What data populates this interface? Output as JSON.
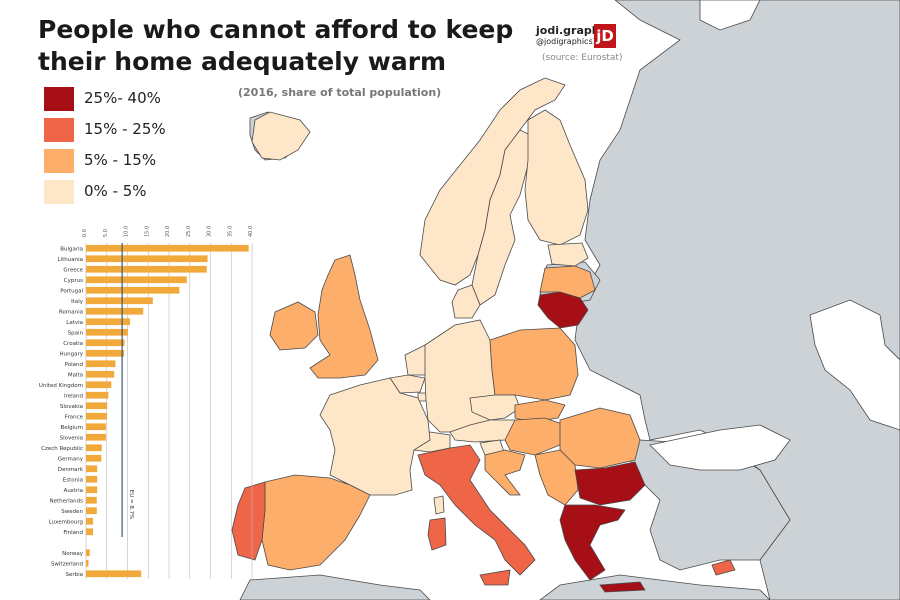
{
  "title": "People who cannot afford to keep their home adequately warm",
  "subtitle": "(2016, share of total population)",
  "brand": {
    "name": "jodi.graphics",
    "handle": "@jodigraphics15",
    "logo_text": "jD"
  },
  "source": "(source: Eurostat)",
  "colors": {
    "sea": "#ffffff",
    "non_eu": "#cdd2d6",
    "border": "#4a4a4a",
    "bar": "#f2a93b",
    "axis_text": "#555555",
    "grid": "#bbbbbb",
    "eu_line": "#3a5a7a"
  },
  "legend": [
    {
      "label": "25%- 40%",
      "color": "#a50f15"
    },
    {
      "label": "15% - 25%",
      "color": "#ef6548"
    },
    {
      "label": "5% - 15%",
      "color": "#fdae6b"
    },
    {
      "label": "0% - 5%",
      "color": "#fee6c9"
    }
  ],
  "chart_data": {
    "type": "bar",
    "orientation": "horizontal",
    "title": "",
    "xlabel": "",
    "ylabel": "",
    "xlim": [
      0,
      40
    ],
    "x_ticks": [
      0,
      5,
      10,
      15,
      20,
      25,
      30,
      35,
      40
    ],
    "x_tick_labels": [
      "0.0",
      "5.0",
      "10.0",
      "15.0",
      "20.0",
      "25.0",
      "30.0",
      "35.0",
      "40.0"
    ],
    "categories": [
      "Bulgaria",
      "Lithuania",
      "Greece",
      "Cyprus",
      "Portugal",
      "Italy",
      "Romania",
      "Latvia",
      "Spain",
      "Croatia",
      "Hungary",
      "Poland",
      "Malta",
      "United Kingdom",
      "Ireland",
      "Slovakia",
      "France",
      "Belgium",
      "Slovenia",
      "Czech Republic",
      "Germany",
      "Denmark",
      "Estonia",
      "Austria",
      "Netherlands",
      "Sweden",
      "Luxembourg",
      "Finland",
      "",
      "Norway",
      "Switzerland",
      "Serbia"
    ],
    "values": [
      39.2,
      29.3,
      29.1,
      24.3,
      22.5,
      16.1,
      13.8,
      10.6,
      10.1,
      9.3,
      9.2,
      7.1,
      6.8,
      6.1,
      5.4,
      5.1,
      5.0,
      4.8,
      4.8,
      3.8,
      3.7,
      2.7,
      2.7,
      2.7,
      2.6,
      2.6,
      1.7,
      1.7,
      null,
      0.9,
      0.6,
      13.3
    ],
    "reference_line": {
      "label": "EU = 8.7%",
      "value": 8.7
    },
    "grid": true
  },
  "map": {
    "regions": [
      {
        "name": "Iceland",
        "class": "0-5"
      },
      {
        "name": "Norway",
        "class": "0-5"
      },
      {
        "name": "Sweden",
        "class": "0-5"
      },
      {
        "name": "Finland",
        "class": "0-5"
      },
      {
        "name": "Estonia",
        "class": "0-5"
      },
      {
        "name": "Latvia",
        "class": "5-15"
      },
      {
        "name": "Lithuania",
        "class": "25-40"
      },
      {
        "name": "United Kingdom",
        "class": "5-15"
      },
      {
        "name": "Ireland",
        "class": "5-15"
      },
      {
        "name": "Denmark",
        "class": "0-5"
      },
      {
        "name": "Netherlands",
        "class": "0-5"
      },
      {
        "name": "Belgium",
        "class": "0-5"
      },
      {
        "name": "Luxembourg",
        "class": "0-5"
      },
      {
        "name": "Germany",
        "class": "0-5"
      },
      {
        "name": "Poland",
        "class": "5-15"
      },
      {
        "name": "Czech Republic",
        "class": "0-5"
      },
      {
        "name": "Slovakia",
        "class": "5-15"
      },
      {
        "name": "Austria",
        "class": "0-5"
      },
      {
        "name": "Switzerland",
        "class": "0-5"
      },
      {
        "name": "France",
        "class": "0-5"
      },
      {
        "name": "Spain",
        "class": "5-15"
      },
      {
        "name": "Portugal",
        "class": "15-25"
      },
      {
        "name": "Italy",
        "class": "15-25"
      },
      {
        "name": "Sardinia",
        "class": "15-25"
      },
      {
        "name": "Sicily",
        "class": "15-25"
      },
      {
        "name": "Corsica",
        "class": "0-5"
      },
      {
        "name": "Slovenia",
        "class": "0-5"
      },
      {
        "name": "Croatia",
        "class": "5-15"
      },
      {
        "name": "Hungary",
        "class": "5-15"
      },
      {
        "name": "Romania",
        "class": "5-15"
      },
      {
        "name": "Serbia",
        "class": "5-15"
      },
      {
        "name": "Bulgaria",
        "class": "25-40"
      },
      {
        "name": "Greece",
        "class": "25-40"
      },
      {
        "name": "Crete",
        "class": "25-40"
      },
      {
        "name": "Cyprus",
        "class": "15-25"
      }
    ]
  }
}
